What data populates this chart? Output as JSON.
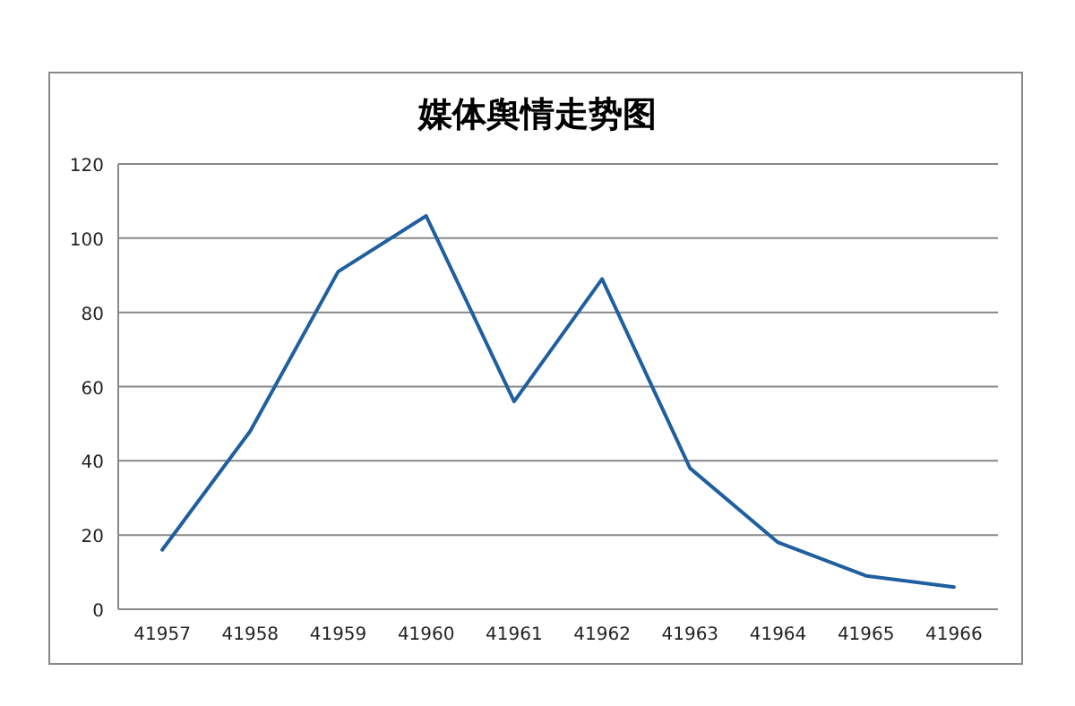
{
  "chart_data": {
    "type": "line",
    "title": "媒体舆情走势图",
    "categories": [
      "41957",
      "41958",
      "41959",
      "41960",
      "41961",
      "41962",
      "41963",
      "41964",
      "41965",
      "41966"
    ],
    "series": [
      {
        "color": "#1f5fa0",
        "values": [
          16,
          48,
          91,
          106,
          56,
          89,
          38,
          18,
          9,
          6
        ]
      }
    ],
    "ylim": [
      0,
      120
    ],
    "yticks": [
      0,
      20,
      40,
      60,
      80,
      100,
      120
    ],
    "grid": "y",
    "marker": "none",
    "line_style": "solid"
  }
}
